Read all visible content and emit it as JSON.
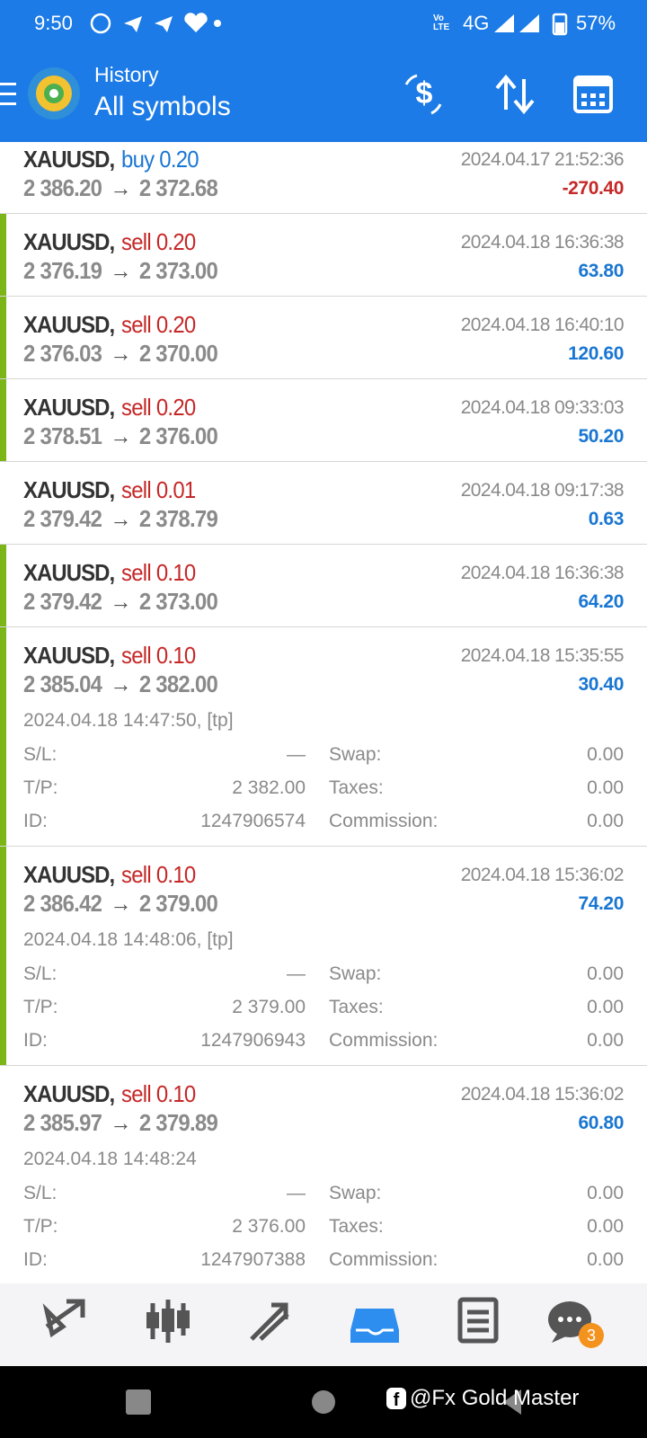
{
  "status_bar": {
    "time": "9:50",
    "network": "4G",
    "battery": "57%"
  },
  "header": {
    "title": "History",
    "subtitle": "All symbols"
  },
  "arrow": "→",
  "detail_labels": {
    "sl": "S/L:",
    "tp": "T/P:",
    "id": "ID:",
    "swap": "Swap:",
    "taxes": "Taxes:",
    "commission": "Commission:"
  },
  "trades": [
    {
      "symbol": "XAUUSD,",
      "action": "buy 0.20",
      "open_price": "2 386.20",
      "close_price": "2 372.68",
      "time": "2024.04.17 21:52:36",
      "profit": "-270.40"
    },
    {
      "symbol": "XAUUSD,",
      "action": "sell 0.20",
      "open_price": "2 376.19",
      "close_price": "2 373.00",
      "time": "2024.04.18 16:36:38",
      "profit": "63.80"
    },
    {
      "symbol": "XAUUSD,",
      "action": "sell 0.20",
      "open_price": "2 376.03",
      "close_price": "2 370.00",
      "time": "2024.04.18 16:40:10",
      "profit": "120.60"
    },
    {
      "symbol": "XAUUSD,",
      "action": "sell 0.20",
      "open_price": "2 378.51",
      "close_price": "2 376.00",
      "time": "2024.04.18 09:33:03",
      "profit": "50.20"
    },
    {
      "symbol": "XAUUSD,",
      "action": "sell 0.01",
      "open_price": "2 379.42",
      "close_price": "2 378.79",
      "time": "2024.04.18 09:17:38",
      "profit": "0.63"
    },
    {
      "symbol": "XAUUSD,",
      "action": "sell 0.10",
      "open_price": "2 379.42",
      "close_price": "2 373.00",
      "time": "2024.04.18 16:36:38",
      "profit": "64.20"
    },
    {
      "symbol": "XAUUSD,",
      "action": "sell 0.10",
      "open_price": "2 385.04",
      "close_price": "2 382.00",
      "time": "2024.04.18 15:35:55",
      "profit": "30.40",
      "details": {
        "close_note": "2024.04.18 14:47:50, [tp]",
        "sl": "—",
        "tp": "2 382.00",
        "id": "1247906574",
        "swap": "0.00",
        "taxes": "0.00",
        "commission": "0.00"
      }
    },
    {
      "symbol": "XAUUSD,",
      "action": "sell 0.10",
      "open_price": "2 386.42",
      "close_price": "2 379.00",
      "time": "2024.04.18 15:36:02",
      "profit": "74.20",
      "details": {
        "close_note": "2024.04.18 14:48:06, [tp]",
        "sl": "—",
        "tp": "2 379.00",
        "id": "1247906943",
        "swap": "0.00",
        "taxes": "0.00",
        "commission": "0.00"
      }
    },
    {
      "symbol": "XAUUSD,",
      "action": "sell 0.10",
      "open_price": "2 385.97",
      "close_price": "2 379.89",
      "time": "2024.04.18 15:36:02",
      "profit": "60.80",
      "details": {
        "close_note": "2024.04.18 14:48:24",
        "sl": "—",
        "tp": "2 376.00",
        "id": "1247907388",
        "swap": "0.00",
        "taxes": "0.00",
        "commission": "0.00"
      }
    }
  ],
  "bottom_nav": {
    "chat_badge": "3"
  },
  "watermark": "@Fx Gold Master"
}
